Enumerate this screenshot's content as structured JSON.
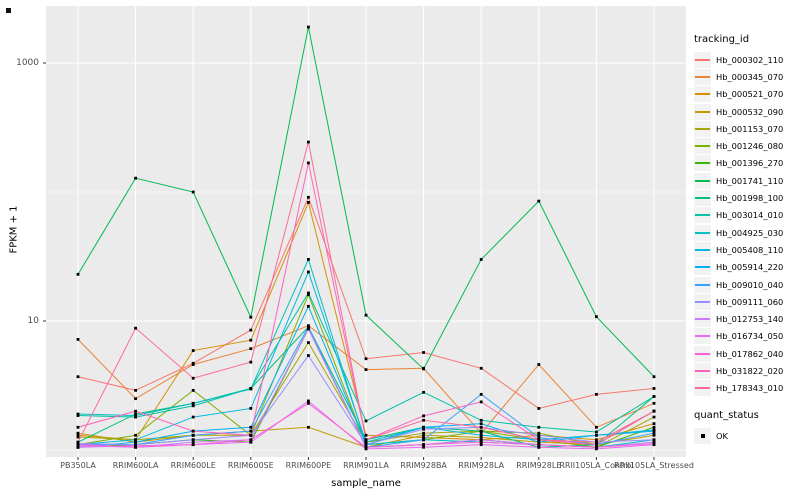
{
  "chart_data": {
    "type": "line",
    "title": "",
    "xlabel": "sample_name",
    "ylabel": "FPKM + 1",
    "panel_bg": "#EBEBEB",
    "grid_color": "#FFFFFF",
    "point_color": "#000000",
    "tick_color": "#333333",
    "y_scale": "log10",
    "y_breaks": [
      10,
      1000
    ],
    "y_minor_breaks": [
      1,
      100
    ],
    "ylim": [
      0.9,
      2800
    ],
    "legend_position": "right",
    "x_categories": [
      "PB350LA",
      "RRIM600LA",
      "RRIM600LE",
      "RRIM600SE",
      "RRIM600PE",
      "RRIM901LA",
      "RRIM928BA",
      "RRIM928LA",
      "RRIM928LE",
      "RRII105LA_Control",
      "RRII105LA_Stressed"
    ],
    "series": [
      {
        "name": "Hb_000302_110",
        "color": "#F8766D",
        "values": [
          3.7,
          2.9,
          4.7,
          8.5,
          91,
          5.1,
          5.7,
          4.3,
          2.1,
          2.7,
          3.0
        ]
      },
      {
        "name": "Hb_000345_070",
        "color": "#EB8335",
        "values": [
          7.2,
          2.5,
          4.6,
          6.1,
          9.2,
          4.2,
          4.3,
          1.35,
          4.6,
          1.5,
          2.3
        ]
      },
      {
        "name": "Hb_000521_070",
        "color": "#D89000",
        "values": [
          1.3,
          1.2,
          5.9,
          7.1,
          83,
          1.3,
          1.25,
          1.2,
          1.3,
          1.2,
          1.6
        ]
      },
      {
        "name": "Hb_000532_090",
        "color": "#C09B00",
        "values": [
          1.35,
          1.15,
          1.3,
          1.4,
          1.5,
          1.05,
          1.3,
          1.25,
          1.15,
          1.1,
          1.3
        ]
      },
      {
        "name": "Hb_001153_070",
        "color": "#A3A500",
        "values": [
          1.26,
          1.2,
          1.3,
          1.3,
          6.8,
          1.15,
          1.35,
          1.4,
          1.2,
          1.05,
          1.8
        ]
      },
      {
        "name": "Hb_001246_080",
        "color": "#7CAE00",
        "values": [
          1.1,
          1.3,
          2.9,
          1.3,
          16,
          1.1,
          1.2,
          1.4,
          1.35,
          1.1,
          2.0
        ]
      },
      {
        "name": "Hb_001396_270",
        "color": "#39B600",
        "values": [
          1.05,
          1.1,
          1.2,
          1.15,
          8.7,
          1.05,
          1.1,
          1.2,
          1.1,
          1.05,
          1.5
        ]
      },
      {
        "name": "Hb_001741_110",
        "color": "#00BB4E",
        "values": [
          23,
          128,
          100,
          10.7,
          1900,
          11.1,
          4.25,
          30,
          85,
          10.8,
          3.7
        ]
      },
      {
        "name": "Hb_001998_100",
        "color": "#00BF7D",
        "values": [
          1.15,
          1.9,
          2.3,
          3.0,
          9.0,
          1.2,
          1.5,
          1.4,
          1.05,
          1.1,
          2.6
        ]
      },
      {
        "name": "Hb_003014_010",
        "color": "#00C1A3",
        "values": [
          1.85,
          1.8,
          2.2,
          3.0,
          16.5,
          1.68,
          2.8,
          1.7,
          1.5,
          1.38,
          2.6
        ]
      },
      {
        "name": "Hb_004925_030",
        "color": "#00BFC4",
        "values": [
          1.9,
          1.85,
          2.3,
          2.97,
          30,
          1.1,
          1.2,
          1.15,
          1.1,
          1.05,
          1.2
        ]
      },
      {
        "name": "Hb_005408_110",
        "color": "#00BAE0",
        "values": [
          1.1,
          1.2,
          1.8,
          2.1,
          24,
          1.15,
          1.5,
          1.3,
          1.2,
          1.3,
          1.43
        ]
      },
      {
        "name": "Hb_005914_220",
        "color": "#00B0F6",
        "values": [
          1.05,
          1.15,
          1.4,
          1.5,
          13,
          1.1,
          1.5,
          1.6,
          1.15,
          1.3,
          1.4
        ]
      },
      {
        "name": "Hb_009010_040",
        "color": "#35A2FF",
        "values": [
          1.1,
          1.1,
          1.3,
          1.4,
          9.0,
          1.05,
          1.2,
          2.7,
          1.25,
          1.1,
          1.35
        ]
      },
      {
        "name": "Hb_009111_060",
        "color": "#9590FF",
        "values": [
          1.12,
          1.1,
          1.2,
          1.3,
          5.4,
          1.1,
          1.45,
          1.5,
          1.3,
          1.15,
          1.2
        ]
      },
      {
        "name": "Hb_012753_140",
        "color": "#C77CFF",
        "values": [
          1.08,
          1.05,
          1.15,
          1.2,
          8.7,
          1.05,
          1.1,
          1.2,
          1.1,
          1.05,
          1.15
        ]
      },
      {
        "name": "Hb_016734_050",
        "color": "#E76BF3",
        "values": [
          1.05,
          1.08,
          1.1,
          1.15,
          2.4,
          1.02,
          1.05,
          1.1,
          1.05,
          1.02,
          1.1
        ]
      },
      {
        "name": "Hb_017862_040",
        "color": "#FA62DB",
        "values": [
          1.1,
          1.05,
          1.1,
          1.2,
          2.3,
          1.05,
          1.1,
          1.15,
          1.1,
          1.05,
          1.12
        ]
      },
      {
        "name": "Hb_031822_020",
        "color": "#FF62BC",
        "values": [
          1.5,
          2.0,
          1.4,
          1.3,
          168,
          1.2,
          1.84,
          2.36,
          1.2,
          1.1,
          2.0
        ]
      },
      {
        "name": "Hb_178343_010",
        "color": "#FF6A98",
        "values": [
          1.15,
          8.8,
          3.6,
          4.8,
          244,
          1.2,
          1.7,
          1.5,
          1.2,
          1.15,
          2.0
        ]
      }
    ],
    "legend": {
      "tracking_title": "tracking_id",
      "quant_title": "quant_status",
      "quant_items": [
        {
          "label": "OK"
        }
      ]
    }
  }
}
